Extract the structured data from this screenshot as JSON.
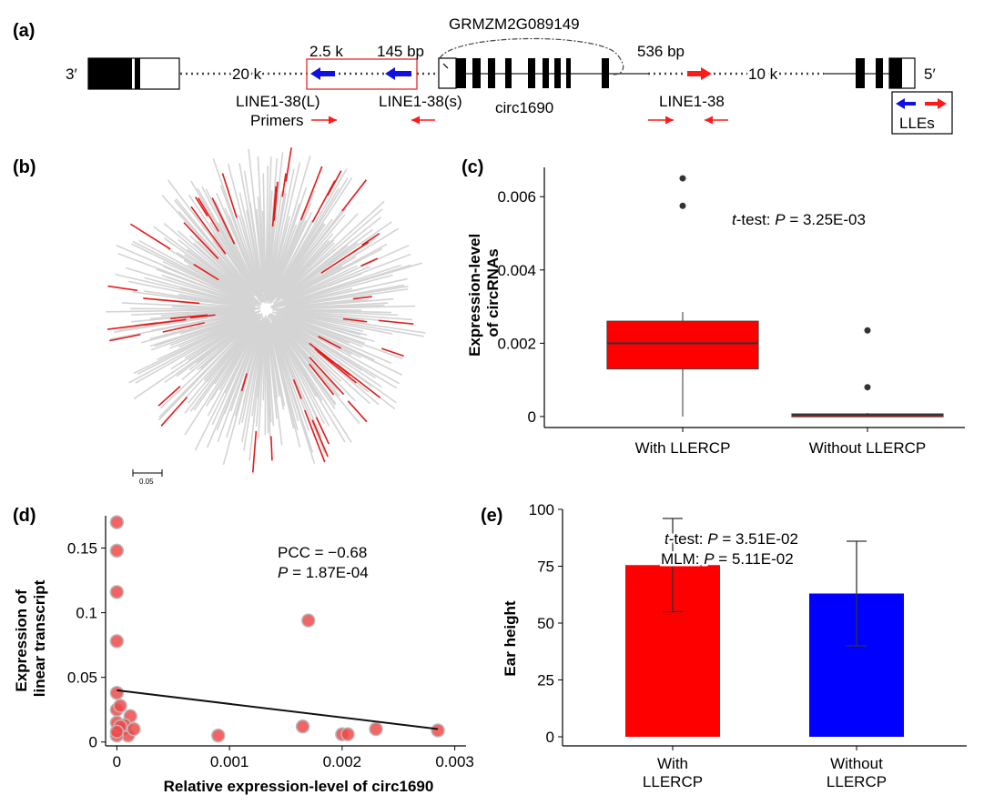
{
  "panel_labels": {
    "a": "(a)",
    "b": "(b)",
    "c": "(c)",
    "d": "(d)",
    "e": "(e)"
  },
  "panel_a": {
    "end_left": "3′",
    "end_right": "5′",
    "dist_20k": "20 k",
    "dist_2_5k": "2.5 k",
    "dist_145bp": "145 bp",
    "dist_536bp": "536 bp",
    "dist_10k": "10 k",
    "gene_name": "GRMZM2G089149",
    "label_line_l": "LINE1-38(L)",
    "label_line_s": "LINE1-38(s)",
    "label_circ": "circ1690",
    "label_line": "LINE1-38",
    "label_primers": "Primers",
    "legend_label": "LLEs",
    "colors": {
      "blue": "#1010e0",
      "red": "#ff1a1a"
    }
  },
  "panel_b": {
    "scale_label": "0.05",
    "colors": {
      "grey": "#d4d4d4",
      "red": "#e41a1a"
    }
  },
  "chart_data": [
    {
      "panel": "c",
      "type": "box",
      "categories": [
        "With LLERCP",
        "Without LLERCP"
      ],
      "ylabel": [
        "Expression-level",
        "of circRNAs"
      ],
      "yticks": [
        "0",
        "0.002",
        "0.004",
        "0.006"
      ],
      "ytick_values": [
        0,
        0.002,
        0.004,
        0.006
      ],
      "ylim": [
        -0.0003,
        0.0068
      ],
      "annotation": {
        "prefix": "t",
        "text": "-test: ",
        "p": "P",
        "value": " = 3.25E-03"
      },
      "boxes": [
        {
          "category": "With LLERCP",
          "q1": 0.0013,
          "median": 0.002,
          "q3": 0.0026,
          "whisker_low": 0.0,
          "whisker_high": 0.00285,
          "outliers": [
            0.0065,
            0.00575
          ],
          "color": "#ff0000"
        },
        {
          "category": "Without LLERCP",
          "q1": 3e-05,
          "median": 5e-05,
          "q3": 7e-05,
          "whisker_low": 0.0,
          "whisker_high": 0.0001,
          "outliers": [
            0.00235,
            0.0008
          ],
          "color": "#ff0000"
        }
      ]
    },
    {
      "panel": "d",
      "type": "scatter",
      "xlabel": "Relative expression-level of circ1690",
      "ylabel": [
        "Expression of",
        "linear transcript"
      ],
      "xticks": [
        "0",
        "0.001",
        "0.002",
        "0.003"
      ],
      "xtick_values": [
        0,
        0.001,
        0.002,
        0.003
      ],
      "yticks": [
        "0",
        "0.05",
        "0.1",
        "0.15"
      ],
      "ytick_values": [
        0,
        0.05,
        0.1,
        0.15
      ],
      "xlim": [
        -0.0001,
        0.0031
      ],
      "ylim": [
        -0.003,
        0.175
      ],
      "annotation": {
        "line1": "PCC = −0.68",
        "p": "P",
        "line2": " = 1.87E-04"
      },
      "points": [
        [
          0.0,
          0.17
        ],
        [
          0.0,
          0.148
        ],
        [
          0.0,
          0.116
        ],
        [
          0.0,
          0.078
        ],
        [
          0.0,
          0.038
        ],
        [
          0.0,
          0.025
        ],
        [
          3e-05,
          0.028
        ],
        [
          0.0,
          0.015
        ],
        [
          5e-05,
          0.01
        ],
        [
          0.0001,
          0.005
        ],
        [
          0.0,
          0.005
        ],
        [
          0.00012,
          0.02
        ],
        [
          7e-05,
          0.013
        ],
        [
          0.00015,
          0.01
        ],
        [
          3e-05,
          0.012
        ],
        [
          0.0,
          0.008
        ],
        [
          0.0009,
          0.005
        ],
        [
          0.0017,
          0.094
        ],
        [
          0.00165,
          0.012
        ],
        [
          0.002,
          0.006
        ],
        [
          0.00205,
          0.006
        ],
        [
          0.0023,
          0.01
        ],
        [
          0.00285,
          0.009
        ]
      ],
      "regression": {
        "x": [
          0.0,
          0.00285
        ],
        "y": [
          0.04,
          0.01
        ]
      },
      "point_color": "#f04a4a"
    },
    {
      "panel": "e",
      "type": "bar",
      "categories": [
        [
          "With",
          "LLERCP"
        ],
        [
          "Without",
          "LLERCP"
        ]
      ],
      "values": [
        75.5,
        63.0
      ],
      "errors": [
        20.5,
        23.0
      ],
      "colors": [
        "#ff0000",
        "#0000ff"
      ],
      "ylabel": "Ear height",
      "yticks": [
        "0",
        "25",
        "50",
        "75",
        "100"
      ],
      "ytick_values": [
        0,
        25,
        50,
        75,
        100
      ],
      "ylim": [
        -4,
        100
      ],
      "annotation": {
        "t": "t",
        "line1": "-test: ",
        "p1": "P",
        "val1": " = 3.51E-02",
        "line2": "MLM: ",
        "p2": "P",
        "val2": " = 5.11E-02"
      }
    }
  ]
}
